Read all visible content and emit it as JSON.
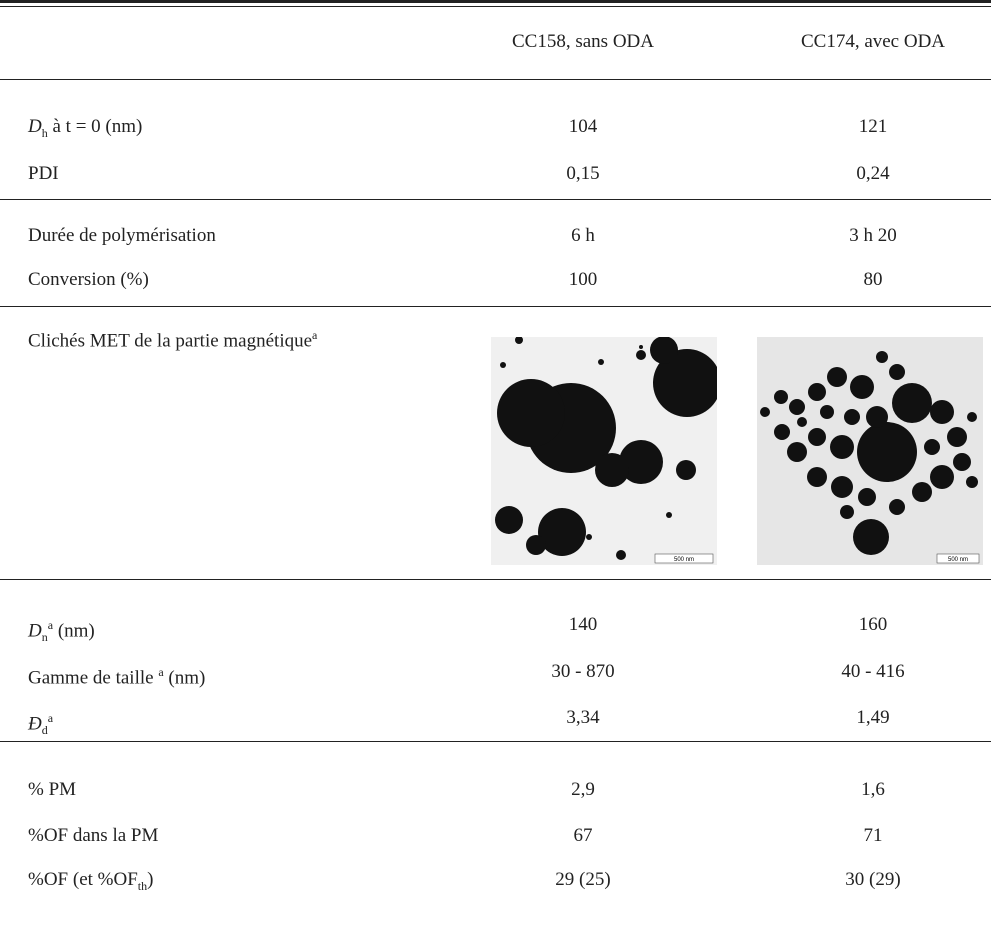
{
  "table": {
    "header": [
      "CC158, sans ODA",
      "CC174, avec ODA"
    ],
    "rows": [
      {
        "label": [
          "D",
          "h",
          " à t = 0 (nm)"
        ],
        "values": [
          "104",
          "121"
        ]
      },
      {
        "label": [
          "PDI"
        ],
        "values": [
          "0,15",
          "0,24"
        ]
      },
      {
        "label": [
          "Durée de polymérisation"
        ],
        "values": [
          "6 h",
          "3 h 20"
        ]
      },
      {
        "label": [
          "Conversion (%)"
        ],
        "values": [
          "100",
          "80"
        ]
      },
      {
        "label": [
          "Clichés MET de la partie magnétique",
          "a"
        ],
        "scale": [
          "500 nm",
          "500 nm"
        ]
      },
      {
        "label": [
          "D",
          "n",
          "a",
          " (nm)"
        ],
        "values": [
          "140",
          "160"
        ]
      },
      {
        "label": [
          "Gamme de taille ",
          "a",
          " (nm)"
        ],
        "values": [
          "30 - 870",
          "40 - 416"
        ]
      },
      {
        "label": [
          "Đ",
          "d",
          "a"
        ],
        "values": [
          "3,34",
          "1,49"
        ]
      },
      {
        "label": [
          "% PM"
        ],
        "values": [
          "2,9",
          "1,6"
        ]
      },
      {
        "label": [
          "%OF dans la PM"
        ],
        "values": [
          "67",
          "71"
        ]
      },
      {
        "label": [
          "%OF (et %OF",
          "th",
          ")"
        ],
        "values": [
          "29 (25)",
          "30 (29)"
        ]
      }
    ]
  }
}
